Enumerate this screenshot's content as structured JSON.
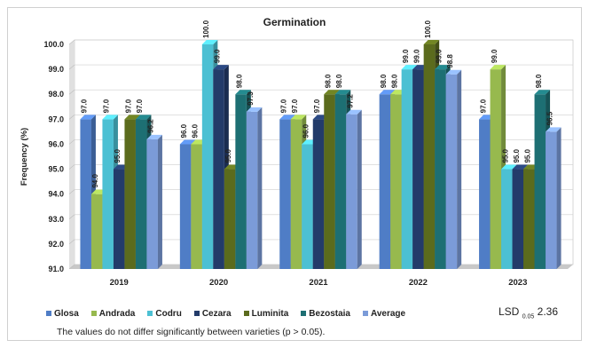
{
  "chart_data": {
    "type": "bar",
    "title": "Germination",
    "ylabel": "Frequency (%)",
    "xlabel": "",
    "ylim": [
      91.0,
      100.0
    ],
    "yticks": [
      "91.0",
      "92.0",
      "93.0",
      "94.0",
      "95.0",
      "96.0",
      "97.0",
      "98.0",
      "99.0",
      "100.0"
    ],
    "grid": true,
    "legend_position": "bottom",
    "categories": [
      "2019",
      "2020",
      "2021",
      "2022",
      "2023"
    ],
    "series": [
      {
        "name": "Glosa",
        "color": "#4f7dc6",
        "values": [
          97.0,
          96.0,
          97.0,
          98.0,
          97.0
        ]
      },
      {
        "name": "Andrada",
        "color": "#97b94e",
        "values": [
          94.0,
          96.0,
          97.0,
          98.0,
          99.0
        ]
      },
      {
        "name": "Codru",
        "color": "#4cc0d3",
        "values": [
          97.0,
          100.0,
          96.0,
          99.0,
          95.0
        ]
      },
      {
        "name": "Cezara",
        "color": "#233b6a",
        "values": [
          95.0,
          99.0,
          97.0,
          99.0,
          95.0
        ]
      },
      {
        "name": "Luminita",
        "color": "#5b6b1d",
        "values": [
          97.0,
          95.0,
          98.0,
          100.0,
          95.0
        ]
      },
      {
        "name": "Bezostaia",
        "color": "#1d6f73",
        "values": [
          97.0,
          98.0,
          98.0,
          99.0,
          98.0
        ]
      },
      {
        "name": "Average",
        "color": "#7b9bd8",
        "values": [
          96.2,
          97.3,
          97.2,
          98.8,
          96.5
        ]
      }
    ]
  },
  "lsd": {
    "prefix": "LSD",
    "subscript": "0.05",
    "value": "2.36"
  },
  "footnote": "The values do not differ significantly between varieties (p > 0.05)."
}
